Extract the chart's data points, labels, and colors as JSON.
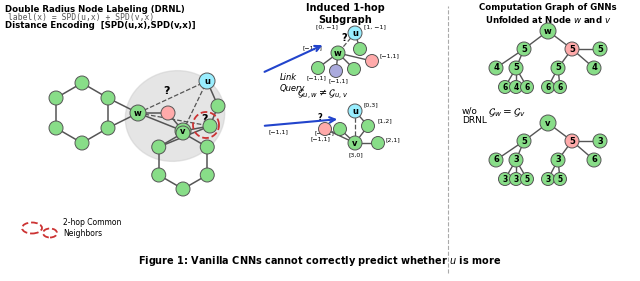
{
  "background": "#ffffff",
  "node_green": "#88dd88",
  "node_cyan": "#99eeff",
  "node_pink": "#ffaaaa",
  "node_blue": "#aaaadd",
  "edge_color": "#555555",
  "drnl_title": "Double Radius Node Labeling (DRNL)",
  "drnl_formula": "label(x) = SPD(u,x) + SPD(v,x)",
  "dist_enc": "Distance Encoding  [SPD(u,x),SPD(v,x)]",
  "induced_title": "Induced 1-hop\nSubgraph",
  "comp_title": "Computation Graph of GNNs\nUnfolded at Node $w$ and $v$",
  "wo_drnl": "w/o\nDRNL",
  "link_query": "Link\nQuery",
  "gu_neq_guv": "$\\mathcal{G}_{u,w}\\neq\\mathcal{G}_{u,v}$",
  "gw_eq_gv": "$\\mathcal{G}_w=\\mathcal{G}_v$",
  "two_hop": "2-hop Common\nNeighbors",
  "caption": "Figure 1: Vanilla CNNs cannot correctly predict whether $u$ is more"
}
